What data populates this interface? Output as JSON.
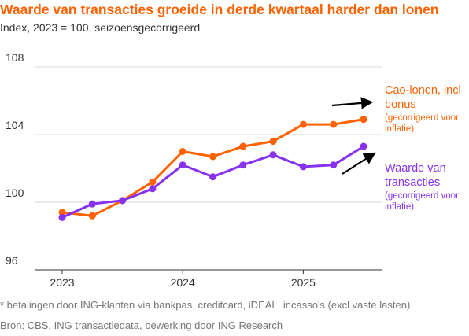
{
  "title": "Waarde van transacties groeide in derde kwartaal harder dan lonen",
  "subtitle": "Index, 2023 = 100, seizoensgecorrigeerd",
  "footnote": "* betalingen door ING-klanten via bankpas, creditcard, iDEAL, incasso's (excl vaste lasten)",
  "source": "Bron: CBS, ING transactiedata, bewerking door ING Research",
  "chart_data": {
    "type": "line",
    "x": [
      "2023Q1",
      "2023Q2",
      "2023Q3",
      "2023Q4",
      "2024Q1",
      "2024Q2",
      "2024Q3",
      "2024Q4",
      "2025Q1",
      "2025Q2",
      "2025Q3"
    ],
    "x_tick_labels": [
      "2023",
      "2024",
      "2025"
    ],
    "y_ticks": [
      96,
      100,
      104,
      108
    ],
    "ylim": [
      96,
      108
    ],
    "grid": "horizontal",
    "series": [
      {
        "name": "Cao-lonen, incl bonus",
        "name_lines": [
          "Cao-lonen, incl",
          "bonus"
        ],
        "note_lines": [
          "(gecorrigeerd voor",
          "inflatie)"
        ],
        "color": "#ff6200",
        "values": [
          99.4,
          99.2,
          100.1,
          101.2,
          103.0,
          102.7,
          103.3,
          103.6,
          104.6,
          104.6,
          104.9
        ]
      },
      {
        "name": "Waarde van transacties",
        "name_lines": [
          "Waarde van",
          "transacties"
        ],
        "note_lines": [
          "(gecorrigeerd voor",
          "inflatie)"
        ],
        "color": "#8732ed",
        "values": [
          99.1,
          99.9,
          100.1,
          100.8,
          102.2,
          101.5,
          102.2,
          102.8,
          102.1,
          102.2,
          103.3
        ]
      }
    ]
  }
}
